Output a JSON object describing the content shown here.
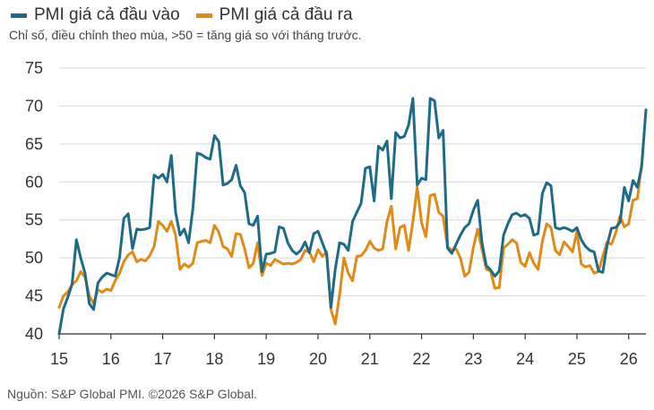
{
  "legend": [
    {
      "name": "PMI giá cả đầu vào",
      "color": "#1e6b85"
    },
    {
      "name": "PMI giá cả đầu ra",
      "color": "#e08a18"
    }
  ],
  "subtitle": "Chỉ số, điều chỉnh theo mùa, >50 = tăng giá so với tháng trước.",
  "source": "Nguồn: S&P Global PMI. ©2026 S&P Global.",
  "chart_data": {
    "type": "line",
    "x_start": "2015-01",
    "x_frequency": "monthly",
    "x_tick_labels": [
      "15",
      "16",
      "17",
      "18",
      "19",
      "20",
      "21",
      "22",
      "23",
      "24",
      "25",
      "26"
    ],
    "ylim": [
      40,
      75
    ],
    "y_ticks": [
      40,
      45,
      50,
      55,
      60,
      65,
      70,
      75
    ],
    "grid": "horizontal",
    "series": [
      {
        "name": "PMI giá cả đầu vào",
        "color": "#1e6b85",
        "values": [
          40.0,
          43.3,
          44.8,
          46.5,
          52.4,
          50.0,
          48.0,
          44.0,
          43.2,
          46.7,
          47.5,
          48.0,
          47.8,
          47.6,
          50.0,
          55.2,
          55.8,
          51.2,
          53.8,
          53.7,
          53.8,
          54.0,
          60.9,
          60.5,
          61.0,
          60.0,
          63.5,
          56.0,
          53.0,
          53.8,
          52.0,
          56.5,
          63.8,
          63.6,
          63.2,
          63.0,
          66.1,
          65.3,
          59.6,
          59.8,
          60.3,
          62.2,
          59.5,
          58.6,
          54.5,
          54.3,
          55.5,
          48.2,
          50.5,
          50.6,
          50.8,
          54.1,
          53.9,
          52.0,
          51.0,
          50.5,
          51.0,
          52.1,
          50.7,
          53.2,
          53.5,
          52.0,
          50.5,
          43.5,
          48.5,
          52.0,
          51.8,
          51.0,
          54.8,
          56.0,
          57.2,
          61.8,
          62.0,
          57.5,
          64.7,
          64.2,
          65.4,
          57.8,
          66.5,
          65.8,
          66.0,
          67.5,
          71.0,
          59.6,
          60.5,
          60.3,
          71.0,
          70.7,
          65.8,
          66.8,
          51.3,
          50.6,
          51.8,
          53.0,
          54.0,
          54.5,
          56.3,
          57.6,
          52.0,
          49.0,
          48.4,
          47.6,
          48.3,
          53.0,
          54.5,
          55.7,
          55.9,
          55.5,
          55.7,
          55.2,
          53.0,
          53.2,
          58.5,
          59.9,
          59.5,
          54.0,
          53.8,
          54.0,
          53.8,
          53.5,
          54.0,
          52.4,
          51.5,
          51.0,
          50.8,
          48.3,
          48.1,
          51.7,
          53.9,
          54.0,
          54.7,
          59.3,
          57.5,
          60.2,
          59.3,
          62.0,
          69.5
        ]
      },
      {
        "name": "PMI giá cả đầu ra",
        "color": "#e08a18",
        "values": [
          43.5,
          45.0,
          45.5,
          46.5,
          47.0,
          48.2,
          47.5,
          45.0,
          44.0,
          45.8,
          45.5,
          45.9,
          45.7,
          47.0,
          48.0,
          49.5,
          50.4,
          50.8,
          49.5,
          49.8,
          49.6,
          50.3,
          51.5,
          54.8,
          54.3,
          53.5,
          54.8,
          53.0,
          48.5,
          49.2,
          48.8,
          49.3,
          52.0,
          52.2,
          52.3,
          52.0,
          54.3,
          53.4,
          51.5,
          51.2,
          50.2,
          53.2,
          53.1,
          51.2,
          48.7,
          49.3,
          52.0,
          47.7,
          49.3,
          49.0,
          49.8,
          49.5,
          49.2,
          49.3,
          49.2,
          49.4,
          49.8,
          51.0,
          50.8,
          49.5,
          51.1,
          50.2,
          50.8,
          43.2,
          41.3,
          45.2,
          50.0,
          48.0,
          47.0,
          50.2,
          50.3,
          51.0,
          52.2,
          51.3,
          51.0,
          51.2,
          54.8,
          56.8,
          51.2,
          54.0,
          54.3,
          51.0,
          54.8,
          59.3,
          54.6,
          52.8,
          58.2,
          58.4,
          56.0,
          55.5,
          51.5,
          51.0,
          51.2,
          50.0,
          47.6,
          48.1,
          51.4,
          53.8,
          51.1,
          48.5,
          48.3,
          46.0,
          46.1,
          51.3,
          51.8,
          52.4,
          52.0,
          49.4,
          48.9,
          50.7,
          49.3,
          48.5,
          52.2,
          54.5,
          54.0,
          51.0,
          50.4,
          52.1,
          51.5,
          50.8,
          53.5,
          49.2,
          48.8,
          49.0,
          48.0,
          48.2,
          50.2,
          52.1,
          51.8,
          53.3,
          55.5,
          54.1,
          54.5,
          57.6,
          57.8,
          62.3
        ]
      }
    ]
  }
}
